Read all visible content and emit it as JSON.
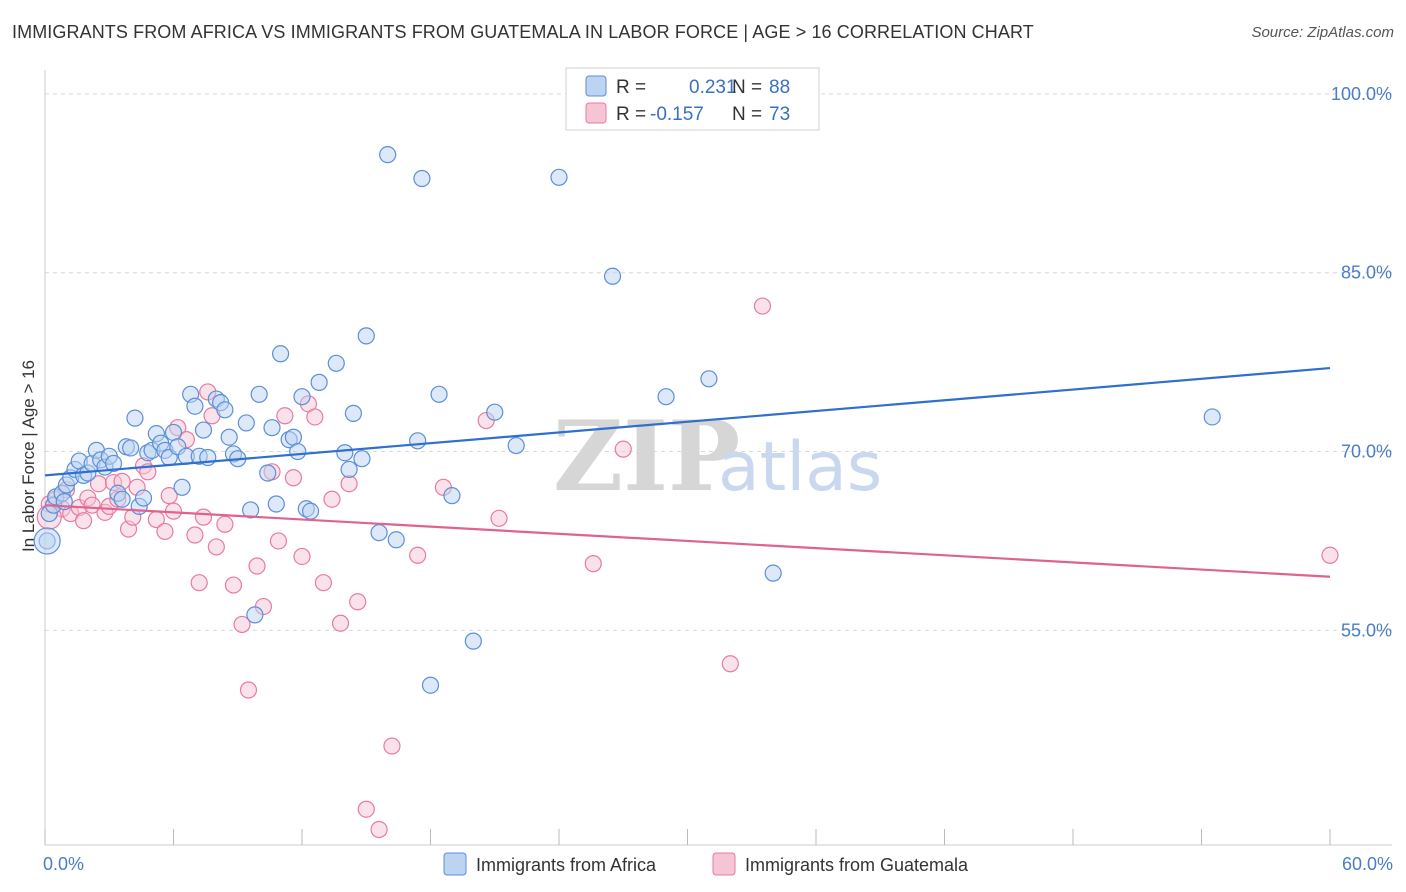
{
  "title": "IMMIGRANTS FROM AFRICA VS IMMIGRANTS FROM GUATEMALA IN LABOR FORCE | AGE > 16 CORRELATION CHART",
  "source": "Source: ZipAtlas.com",
  "watermark": {
    "zip": "ZIP",
    "atlas": "atlas"
  },
  "colors": {
    "africa": "#5b8fd8",
    "africa_fill": "#bcd3f2",
    "guatemala": "#e97aa0",
    "guatemala_fill": "#f6c5d5",
    "grid": "#d9d9d9",
    "tick_text": "#4a7cc9"
  },
  "stats": [
    {
      "r_label": "R =",
      "r_value": "0.231",
      "n_label": "N =",
      "n_value": "88"
    },
    {
      "r_label": "R =",
      "r_value": "-0.157",
      "n_label": "N =",
      "n_value": "73"
    }
  ],
  "chart_data": {
    "type": "scatter",
    "xlabel": "",
    "ylabel": "In Labor Force | Age > 16",
    "xlim": [
      0,
      60
    ],
    "ylim": [
      37,
      102
    ],
    "x_tick_labels": [
      {
        "value": 0,
        "label": "0.0%"
      },
      {
        "value": 60,
        "label": "60.0%"
      }
    ],
    "y_tick_labels": [
      {
        "value": 100,
        "label": "100.0%"
      },
      {
        "value": 85,
        "label": "85.0%"
      },
      {
        "value": 70,
        "label": "70.0%"
      },
      {
        "value": 55,
        "label": "55.0%"
      }
    ],
    "gridlines_y": [
      100,
      85,
      70,
      55
    ],
    "legend_position": "bottom",
    "series": [
      {
        "name": "Immigrants from Africa",
        "color": "#5b8fd8",
        "trend": {
          "x": [
            0,
            60
          ],
          "y": [
            68.0,
            77.0
          ]
        },
        "points": [
          [
            0.1,
            62.5
          ],
          [
            0.2,
            64.8
          ],
          [
            0.4,
            65.5
          ],
          [
            0.5,
            66.2
          ],
          [
            0.8,
            66.5
          ],
          [
            0.9,
            65.8
          ],
          [
            1.0,
            67.2
          ],
          [
            1.2,
            67.8
          ],
          [
            1.4,
            68.5
          ],
          [
            1.6,
            69.2
          ],
          [
            1.8,
            68.0
          ],
          [
            2.0,
            68.2
          ],
          [
            2.2,
            69.0
          ],
          [
            2.4,
            70.1
          ],
          [
            2.6,
            69.3
          ],
          [
            2.8,
            68.7
          ],
          [
            3.0,
            69.6
          ],
          [
            3.2,
            69.0
          ],
          [
            3.4,
            66.5
          ],
          [
            3.6,
            66.0
          ],
          [
            3.8,
            70.4
          ],
          [
            4.0,
            70.3
          ],
          [
            4.2,
            72.8
          ],
          [
            4.4,
            65.4
          ],
          [
            4.6,
            66.1
          ],
          [
            4.8,
            69.9
          ],
          [
            5.0,
            70.1
          ],
          [
            5.2,
            71.5
          ],
          [
            5.4,
            70.7
          ],
          [
            5.6,
            70.1
          ],
          [
            5.8,
            69.5
          ],
          [
            6.0,
            71.6
          ],
          [
            6.2,
            70.4
          ],
          [
            6.4,
            67.0
          ],
          [
            6.6,
            69.6
          ],
          [
            6.8,
            74.8
          ],
          [
            7.0,
            73.8
          ],
          [
            7.2,
            69.6
          ],
          [
            7.4,
            71.8
          ],
          [
            7.6,
            69.5
          ],
          [
            8.0,
            74.4
          ],
          [
            8.2,
            74.1
          ],
          [
            8.4,
            73.5
          ],
          [
            8.6,
            71.2
          ],
          [
            8.8,
            69.8
          ],
          [
            9.0,
            69.4
          ],
          [
            9.4,
            72.4
          ],
          [
            9.6,
            65.1
          ],
          [
            9.8,
            56.3
          ],
          [
            10.0,
            74.8
          ],
          [
            10.4,
            68.2
          ],
          [
            10.6,
            72.0
          ],
          [
            10.8,
            65.6
          ],
          [
            11.0,
            78.2
          ],
          [
            11.4,
            71.0
          ],
          [
            11.6,
            71.2
          ],
          [
            11.8,
            70.0
          ],
          [
            12.0,
            74.6
          ],
          [
            12.2,
            65.2
          ],
          [
            12.4,
            65.0
          ],
          [
            12.8,
            75.8
          ],
          [
            13.6,
            77.4
          ],
          [
            14.0,
            69.9
          ],
          [
            14.2,
            68.5
          ],
          [
            14.4,
            73.2
          ],
          [
            14.8,
            69.4
          ],
          [
            15.0,
            79.7
          ],
          [
            15.6,
            63.2
          ],
          [
            16.0,
            94.9
          ],
          [
            16.4,
            62.6
          ],
          [
            17.4,
            70.9
          ],
          [
            17.6,
            92.9
          ],
          [
            18.0,
            50.4
          ],
          [
            18.4,
            74.8
          ],
          [
            19.0,
            66.3
          ],
          [
            20.0,
            54.1
          ],
          [
            21.0,
            73.3
          ],
          [
            22.0,
            70.5
          ],
          [
            24.0,
            93.0
          ],
          [
            26.5,
            84.7
          ],
          [
            29.0,
            74.6
          ],
          [
            31.0,
            76.1
          ],
          [
            34.0,
            59.8
          ],
          [
            54.5,
            72.9
          ]
        ]
      },
      {
        "name": "Immigrants from Guatemala",
        "color": "#e97aa0",
        "trend": {
          "x": [
            0,
            60
          ],
          "y": [
            65.5,
            59.5
          ]
        },
        "points": [
          [
            0.2,
            65.6
          ],
          [
            0.5,
            66.0
          ],
          [
            0.8,
            65.2
          ],
          [
            1.0,
            66.8
          ],
          [
            1.2,
            64.8
          ],
          [
            1.6,
            65.3
          ],
          [
            1.8,
            64.2
          ],
          [
            2.0,
            66.1
          ],
          [
            2.2,
            65.5
          ],
          [
            2.5,
            67.3
          ],
          [
            2.8,
            64.9
          ],
          [
            3.0,
            65.4
          ],
          [
            3.2,
            67.4
          ],
          [
            3.4,
            66.0
          ],
          [
            3.6,
            67.5
          ],
          [
            3.9,
            63.5
          ],
          [
            4.1,
            64.5
          ],
          [
            4.3,
            67.0
          ],
          [
            4.6,
            68.8
          ],
          [
            4.8,
            68.3
          ],
          [
            5.2,
            64.3
          ],
          [
            5.6,
            63.3
          ],
          [
            5.8,
            66.3
          ],
          [
            6.0,
            65.0
          ],
          [
            6.2,
            72.0
          ],
          [
            6.6,
            71.0
          ],
          [
            7.0,
            63.0
          ],
          [
            7.2,
            59.0
          ],
          [
            7.4,
            64.5
          ],
          [
            7.6,
            75.0
          ],
          [
            7.8,
            73.0
          ],
          [
            8.0,
            62.0
          ],
          [
            8.4,
            63.9
          ],
          [
            8.8,
            58.8
          ],
          [
            9.2,
            55.5
          ],
          [
            9.5,
            50.0
          ],
          [
            9.9,
            60.4
          ],
          [
            10.2,
            57.0
          ],
          [
            10.6,
            68.3
          ],
          [
            10.9,
            62.5
          ],
          [
            11.2,
            73.0
          ],
          [
            11.6,
            67.8
          ],
          [
            12.0,
            61.2
          ],
          [
            12.3,
            74.0
          ],
          [
            12.6,
            72.9
          ],
          [
            13.0,
            59.0
          ],
          [
            13.4,
            66.0
          ],
          [
            13.8,
            55.6
          ],
          [
            14.2,
            67.3
          ],
          [
            14.6,
            57.4
          ],
          [
            15.0,
            40.0
          ],
          [
            15.6,
            38.3
          ],
          [
            16.2,
            45.3
          ],
          [
            17.4,
            61.3
          ],
          [
            18.6,
            67.0
          ],
          [
            20.6,
            72.6
          ],
          [
            21.2,
            64.4
          ],
          [
            25.6,
            60.6
          ],
          [
            27.0,
            70.2
          ],
          [
            32.0,
            52.2
          ],
          [
            33.5,
            82.2
          ],
          [
            60.0,
            61.3
          ]
        ]
      }
    ]
  }
}
